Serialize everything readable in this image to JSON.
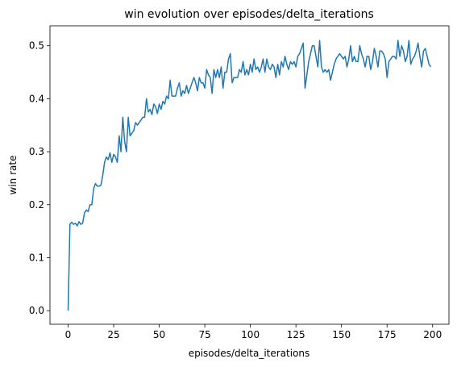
{
  "chart_data": {
    "type": "line",
    "title": "win evolution over episodes/delta_iterations",
    "x_label": "episodes/delta_iterations",
    "y_label": "win rate",
    "x": [
      0,
      1,
      2,
      3,
      4,
      5,
      6,
      7,
      8,
      9,
      10,
      11,
      12,
      13,
      14,
      15,
      16,
      17,
      18,
      19,
      20,
      21,
      22,
      23,
      24,
      25,
      26,
      27,
      28,
      29,
      30,
      31,
      32,
      33,
      34,
      35,
      36,
      37,
      38,
      39,
      40,
      41,
      42,
      43,
      44,
      45,
      46,
      47,
      48,
      49,
      50,
      51,
      52,
      53,
      54,
      55,
      56,
      57,
      58,
      59,
      60,
      61,
      62,
      63,
      64,
      65,
      66,
      67,
      68,
      69,
      70,
      71,
      72,
      73,
      74,
      75,
      76,
      77,
      78,
      79,
      80,
      81,
      82,
      83,
      84,
      85,
      86,
      87,
      88,
      89,
      90,
      91,
      92,
      93,
      94,
      95,
      96,
      97,
      98,
      99,
      100,
      101,
      102,
      103,
      104,
      105,
      106,
      107,
      108,
      109,
      110,
      111,
      112,
      113,
      114,
      115,
      116,
      117,
      118,
      119,
      120,
      121,
      122,
      123,
      124,
      125,
      126,
      127,
      128,
      129,
      130,
      131,
      132,
      133,
      134,
      135,
      136,
      137,
      138,
      139,
      140,
      141,
      142,
      143,
      144,
      145,
      146,
      147,
      148,
      149,
      150,
      151,
      152,
      153,
      154,
      155,
      156,
      157,
      158,
      159,
      160,
      161,
      162,
      163,
      164,
      165,
      166,
      167,
      168,
      169,
      170,
      171,
      172,
      173,
      174,
      175,
      176,
      177,
      178,
      179,
      180,
      181,
      182,
      183,
      184,
      185,
      186,
      187,
      188,
      189,
      190,
      191,
      192,
      193,
      194,
      195,
      196,
      197,
      198,
      199
    ],
    "series": [
      {
        "color": "#1f77b4",
        "values": [
          0.0,
          0.163,
          0.167,
          0.163,
          0.165,
          0.16,
          0.168,
          0.163,
          0.165,
          0.185,
          0.19,
          0.187,
          0.2,
          0.2,
          0.23,
          0.24,
          0.235,
          0.235,
          0.237,
          0.255,
          0.28,
          0.29,
          0.285,
          0.298,
          0.28,
          0.295,
          0.29,
          0.28,
          0.33,
          0.3,
          0.365,
          0.32,
          0.3,
          0.365,
          0.33,
          0.335,
          0.34,
          0.355,
          0.35,
          0.355,
          0.36,
          0.365,
          0.365,
          0.4,
          0.375,
          0.38,
          0.37,
          0.39,
          0.385,
          0.372,
          0.39,
          0.38,
          0.395,
          0.39,
          0.405,
          0.4,
          0.435,
          0.405,
          0.405,
          0.405,
          0.42,
          0.43,
          0.405,
          0.415,
          0.41,
          0.425,
          0.41,
          0.42,
          0.43,
          0.44,
          0.43,
          0.415,
          0.44,
          0.43,
          0.43,
          0.42,
          0.455,
          0.445,
          0.44,
          0.41,
          0.455,
          0.44,
          0.455,
          0.44,
          0.46,
          0.42,
          0.45,
          0.45,
          0.475,
          0.485,
          0.43,
          0.44,
          0.44,
          0.44,
          0.455,
          0.45,
          0.47,
          0.445,
          0.455,
          0.445,
          0.465,
          0.45,
          0.475,
          0.455,
          0.46,
          0.45,
          0.46,
          0.475,
          0.45,
          0.475,
          0.46,
          0.455,
          0.465,
          0.46,
          0.44,
          0.465,
          0.445,
          0.47,
          0.46,
          0.48,
          0.465,
          0.455,
          0.47,
          0.465,
          0.47,
          0.46,
          0.48,
          0.485,
          0.495,
          0.505,
          0.42,
          0.445,
          0.47,
          0.485,
          0.5,
          0.5,
          0.48,
          0.46,
          0.51,
          0.46,
          0.45,
          0.455,
          0.45,
          0.455,
          0.435,
          0.45,
          0.465,
          0.475,
          0.48,
          0.485,
          0.48,
          0.475,
          0.48,
          0.46,
          0.475,
          0.5,
          0.47,
          0.48,
          0.47,
          0.47,
          0.5,
          0.485,
          0.475,
          0.46,
          0.48,
          0.48,
          0.455,
          0.47,
          0.495,
          0.48,
          0.46,
          0.49,
          0.49,
          0.485,
          0.475,
          0.44,
          0.47,
          0.475,
          0.48,
          0.48,
          0.475,
          0.51,
          0.48,
          0.5,
          0.49,
          0.47,
          0.48,
          0.51,
          0.465,
          0.475,
          0.48,
          0.49,
          0.505,
          0.48,
          0.46,
          0.49,
          0.495,
          0.48,
          0.465,
          0.46
        ]
      }
    ],
    "xlim": [
      -9.95,
      208.95
    ],
    "ylim": [
      -0.0256,
      0.5376
    ],
    "xticks": [
      0,
      25,
      50,
      75,
      100,
      125,
      150,
      175,
      200
    ],
    "yticks": [
      {
        "value": 0,
        "label": "0.0"
      },
      0.1,
      0.2,
      0.3,
      0.4,
      0.5
    ]
  }
}
